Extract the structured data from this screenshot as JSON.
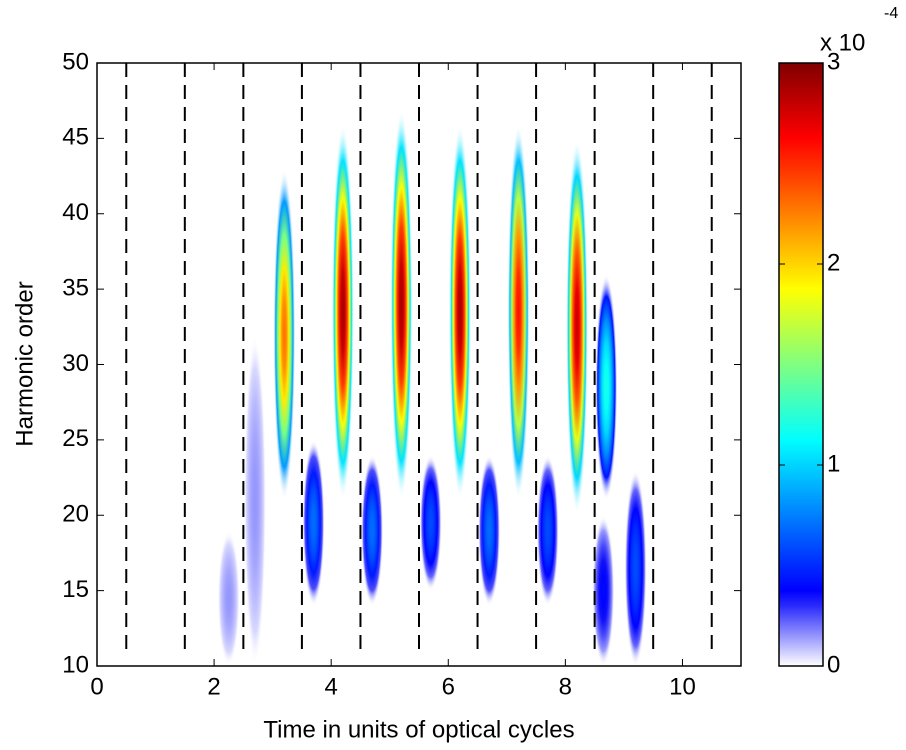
{
  "chart_data": {
    "type": "heatmap",
    "x_label": "Time in units of optical cycles",
    "y_label": "Harmonic order",
    "xlim": [
      0,
      11
    ],
    "ylim": [
      10,
      50
    ],
    "xticks": [
      0,
      2,
      4,
      6,
      8,
      10
    ],
    "yticks": [
      10,
      15,
      20,
      25,
      30,
      35,
      40,
      45,
      50
    ],
    "vlines": [
      0.5,
      1.5,
      2.5,
      3.5,
      4.5,
      5.5,
      6.5,
      7.5,
      8.5,
      9.5,
      10.5
    ],
    "blobs": {
      "x": [
        3.2,
        4.2,
        5.2,
        6.2,
        7.2,
        8.2,
        8.7,
        3.7,
        4.7,
        5.7,
        6.7,
        7.7,
        2.25,
        2.7,
        8.65,
        9.2
      ],
      "ymin": [
        21,
        21,
        21,
        21,
        21,
        20,
        21,
        14,
        14,
        15,
        14,
        14,
        10,
        10,
        10,
        10
      ],
      "ymax": [
        43,
        46,
        47,
        46,
        46,
        45,
        36,
        25,
        24,
        24,
        24,
        24,
        19,
        32,
        20,
        23
      ],
      "z": [
        2.3,
        2.9,
        2.9,
        2.9,
        2.6,
        2.8,
        1.2,
        0.7,
        0.7,
        0.6,
        0.7,
        0.6,
        0.15,
        0.15,
        0.4,
        0.6
      ]
    },
    "colorbar": {
      "lim": [
        0,
        3
      ],
      "ticks": [
        0,
        1,
        2,
        3
      ],
      "multiplier_label": "x 10",
      "multiplier_exponent": "-4"
    }
  }
}
